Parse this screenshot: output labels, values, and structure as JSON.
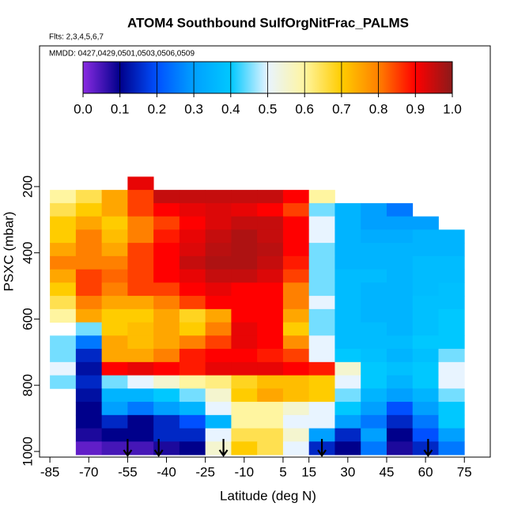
{
  "chart_data": {
    "type": "heatmap",
    "title": "ATOM4 Southbound SulfOrgNitFrac_PALMS",
    "subtitle": "Flts: 2,3,4,5,6,7",
    "annotation": "MMDD: 0427,0429,0501,0503,0506,0509",
    "x_label": "Latitude (deg N)",
    "y_label": "PSXC (mbar)",
    "xlim": [
      -89,
      85
    ],
    "ylim": [
      -225,
      1017
    ],
    "y_reversed": true,
    "xticks": [
      -85,
      -70,
      -55,
      -40,
      -25,
      -10,
      5,
      15,
      30,
      45,
      60,
      75
    ],
    "yticks": [
      200,
      400,
      600,
      800,
      1000
    ],
    "lat_centers": [
      -80,
      -70,
      -60,
      -50,
      -40,
      -30,
      -20,
      -10,
      0,
      10,
      20,
      30,
      40,
      50,
      60,
      70
    ],
    "lat_bin_width": 10,
    "pressure_bin_width": 40,
    "rows": [
      {
        "pressure": 190,
        "values": [
          null,
          null,
          null,
          0.92,
          null,
          null,
          null,
          null,
          null,
          null,
          null,
          null,
          null,
          null,
          null,
          null
        ]
      },
      {
        "pressure": 230,
        "values": [
          0.6,
          0.65,
          0.75,
          0.85,
          0.95,
          0.95,
          0.95,
          0.95,
          0.95,
          0.9,
          0.6,
          null,
          null,
          null,
          null,
          null
        ]
      },
      {
        "pressure": 270,
        "values": [
          0.65,
          0.7,
          0.75,
          0.85,
          0.9,
          0.92,
          0.93,
          0.92,
          0.9,
          0.85,
          0.45,
          0.35,
          0.3,
          0.25,
          null,
          null
        ]
      },
      {
        "pressure": 310,
        "values": [
          0.7,
          0.75,
          0.7,
          0.8,
          0.85,
          0.9,
          0.93,
          0.95,
          0.95,
          0.9,
          0.5,
          0.35,
          0.3,
          0.3,
          0.3,
          null
        ]
      },
      {
        "pressure": 350,
        "values": [
          0.7,
          0.8,
          0.72,
          0.8,
          0.88,
          0.92,
          0.95,
          0.97,
          0.95,
          0.9,
          0.5,
          0.35,
          0.33,
          0.33,
          0.35,
          0.35
        ]
      },
      {
        "pressure": 390,
        "values": [
          0.75,
          0.8,
          0.75,
          0.85,
          0.9,
          0.93,
          0.96,
          0.97,
          0.96,
          0.9,
          0.45,
          0.35,
          0.35,
          0.35,
          0.35,
          0.35
        ]
      },
      {
        "pressure": 430,
        "values": [
          0.8,
          0.8,
          0.8,
          0.85,
          0.9,
          0.95,
          0.97,
          0.97,
          0.95,
          0.88,
          0.45,
          0.35,
          0.35,
          0.35,
          0.37,
          0.37
        ]
      },
      {
        "pressure": 470,
        "values": [
          0.75,
          0.85,
          0.82,
          0.85,
          0.9,
          0.92,
          0.95,
          0.95,
          0.93,
          0.85,
          0.45,
          0.37,
          0.37,
          0.35,
          0.37,
          0.37
        ]
      },
      {
        "pressure": 510,
        "values": [
          0.7,
          0.85,
          0.8,
          0.85,
          0.85,
          0.9,
          0.92,
          0.9,
          0.9,
          0.8,
          0.45,
          0.37,
          0.35,
          0.35,
          0.37,
          0.38
        ]
      },
      {
        "pressure": 550,
        "values": [
          0.65,
          0.8,
          0.75,
          0.75,
          0.8,
          0.85,
          0.9,
          0.9,
          0.9,
          0.8,
          0.5,
          0.37,
          0.35,
          0.35,
          0.38,
          0.38
        ]
      },
      {
        "pressure": 590,
        "values": [
          0.6,
          0.75,
          0.7,
          0.7,
          0.75,
          0.68,
          0.75,
          0.9,
          0.9,
          0.75,
          0.45,
          0.37,
          0.35,
          0.35,
          0.38,
          0.4
        ]
      },
      {
        "pressure": 630,
        "values": [
          null,
          0.45,
          0.7,
          0.72,
          0.75,
          0.7,
          0.8,
          0.92,
          0.9,
          0.7,
          0.45,
          0.37,
          0.37,
          0.35,
          0.38,
          0.4
        ]
      },
      {
        "pressure": 670,
        "values": [
          0.45,
          0.25,
          0.75,
          0.72,
          0.75,
          0.8,
          0.85,
          0.92,
          0.9,
          0.78,
          0.5,
          0.37,
          0.37,
          0.37,
          0.4,
          0.4
        ]
      },
      {
        "pressure": 710,
        "values": [
          0.45,
          0.15,
          0.75,
          0.75,
          0.8,
          0.88,
          0.9,
          0.9,
          0.88,
          0.85,
          0.5,
          0.4,
          0.38,
          0.35,
          0.38,
          0.45
        ]
      },
      {
        "pressure": 750,
        "values": [
          0.5,
          0.12,
          0.9,
          0.92,
          0.9,
          0.88,
          0.92,
          0.92,
          0.92,
          0.9,
          0.88,
          0.55,
          0.4,
          0.38,
          0.4,
          0.5
        ]
      },
      {
        "pressure": 790,
        "values": [
          0.45,
          0.15,
          0.45,
          0.5,
          0.55,
          0.6,
          0.62,
          0.68,
          0.72,
          0.72,
          0.7,
          0.5,
          0.4,
          0.35,
          0.4,
          0.5
        ]
      },
      {
        "pressure": 830,
        "values": [
          null,
          0.12,
          0.35,
          0.35,
          0.4,
          0.45,
          0.55,
          0.7,
          0.75,
          0.72,
          0.7,
          0.45,
          0.35,
          0.3,
          0.35,
          0.45
        ]
      },
      {
        "pressure": 870,
        "values": [
          null,
          0.1,
          0.3,
          0.25,
          0.3,
          0.35,
          0.5,
          0.6,
          0.6,
          0.55,
          0.5,
          0.4,
          0.3,
          0.2,
          0.3,
          0.4
        ]
      },
      {
        "pressure": 910,
        "values": [
          null,
          0.1,
          0.15,
          0.1,
          0.15,
          0.2,
          0.35,
          0.6,
          0.6,
          0.5,
          0.5,
          0.3,
          0.25,
          0.15,
          0.25,
          0.4
        ]
      },
      {
        "pressure": 950,
        "values": [
          null,
          0.08,
          0.1,
          0.1,
          0.15,
          0.15,
          0.5,
          0.65,
          0.65,
          0.55,
          0.3,
          0.15,
          0.3,
          0.1,
          0.2,
          0.3
        ]
      },
      {
        "pressure": 990,
        "values": [
          null,
          0.03,
          0.05,
          0.05,
          0.08,
          0.1,
          0.55,
          0.7,
          0.65,
          0.5,
          0.15,
          0.1,
          0.25,
          0.08,
          0.15,
          0.25
        ]
      }
    ],
    "arrow_lats": [
      -55,
      -43,
      -18,
      20,
      61
    ],
    "colorbar_lim": [
      0,
      1
    ],
    "colorbar_ticks": [
      {
        "value": 0,
        "label": "0.0"
      },
      0.1,
      0.2,
      0.3,
      0.4,
      0.5,
      0.6,
      0.7,
      0.8,
      0.9,
      {
        "value": 1,
        "label": "1.0"
      }
    ],
    "colorscale": {
      "stops": [
        0,
        0.1,
        0.2,
        0.3,
        0.4,
        0.5,
        0.6,
        0.7,
        0.8,
        0.9,
        1
      ],
      "colors": [
        "#8a2be2",
        "#00008b",
        "#0050ff",
        "#00a0ff",
        "#00c8ff",
        "#e8f4ff",
        "#fff5a0",
        "#ffcc00",
        "#ff8000",
        "#ff0000",
        "#8b1a1a"
      ]
    }
  }
}
